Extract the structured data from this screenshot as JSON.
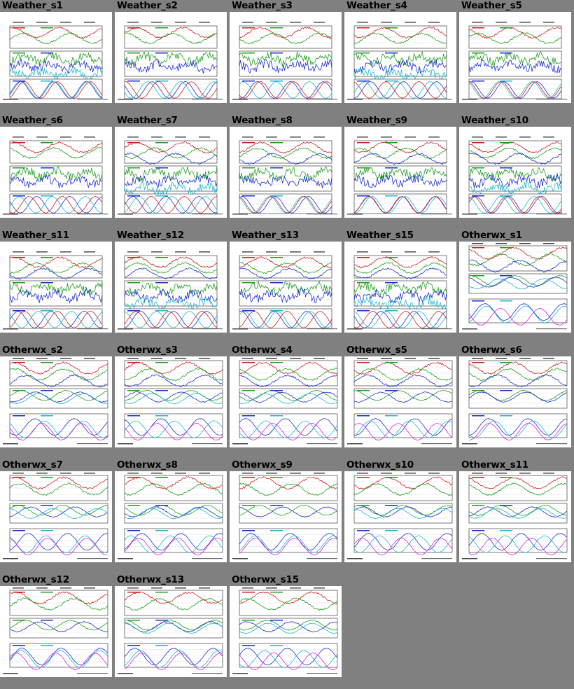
{
  "gallery": {
    "background": "#808080",
    "rows": [
      [
        "Weather_s1",
        "Weather_s2",
        "Weather_s3",
        "Weather_s4",
        "Weather_s5"
      ],
      [
        "Weather_s6",
        "Weather_s7",
        "Weather_s8",
        "Weather_s9",
        "Weather_s10"
      ],
      [
        "Weather_s11",
        "Weather_s12",
        "Weather_s13",
        "Weather_s15",
        "Otherwx_s1"
      ],
      [
        "Otherwx_s2",
        "Otherwx_s3",
        "Otherwx_s4",
        "Otherwx_s5",
        "Otherwx_s6"
      ],
      [
        "Otherwx_s7",
        "Otherwx_s8",
        "Otherwx_s9",
        "Otherwx_s10",
        "Otherwx_s11"
      ],
      [
        "Otherwx_s12",
        "Otherwx_s13",
        "Otherwx_s15"
      ]
    ]
  },
  "thumbnail_style": {
    "weather": {
      "panels": 3,
      "series_colors": [
        "#d02020",
        "#20a020",
        "#2030d0",
        "#20b8d0"
      ]
    },
    "otherwx": {
      "panels": 3,
      "series_colors": [
        "#d02020",
        "#20a020",
        "#2030d0",
        "#20b8d0",
        "#e020e0"
      ]
    }
  }
}
